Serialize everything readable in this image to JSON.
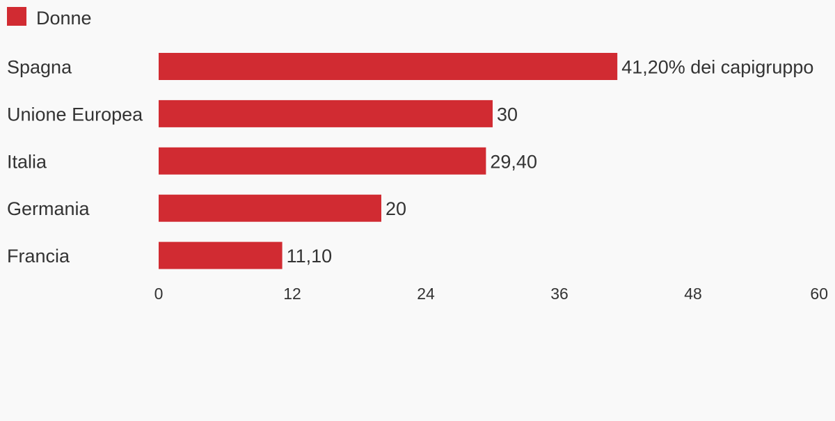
{
  "chart_data": {
    "type": "bar",
    "orientation": "horizontal",
    "legend_position": "top-left",
    "grid": false,
    "series": [
      {
        "name": "Donne",
        "color": "#d12b32",
        "values": [
          41.2,
          30,
          29.4,
          20,
          11.1
        ],
        "labels": [
          "41,20% dei capigruppo",
          "30",
          "29,40",
          "20",
          "11,10"
        ]
      }
    ],
    "categories": [
      "Spagna",
      "Unione Europea",
      "Italia",
      "Germania",
      "Francia"
    ],
    "xlim": [
      0,
      60
    ],
    "xticks": [
      0,
      12,
      24,
      36,
      48,
      60
    ]
  }
}
